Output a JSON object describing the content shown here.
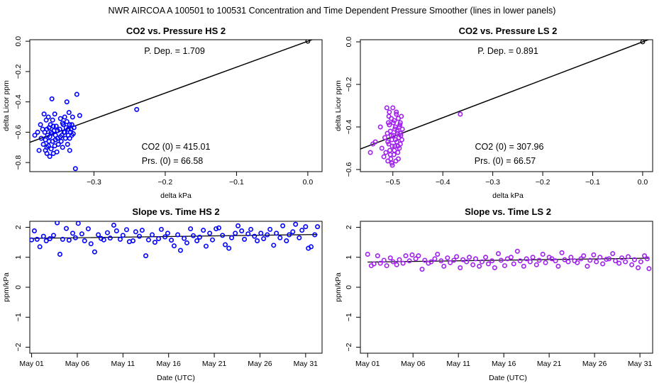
{
  "page_title": "NWR   AIRCOA A   100501 to 100531   Concentration and Time Dependent Pressure Smoother (lines in lower panels)",
  "colors": {
    "hs": "#0000ff",
    "ls": "#a020f0",
    "line": "#000000"
  },
  "chart_data": [
    {
      "id": "hs-pressure",
      "type": "scatter",
      "title": "CO2 vs. Pressure HS 2",
      "xlabel": "delta kPa",
      "ylabel": "delta Licor ppm",
      "xlim": [
        -0.39,
        0.02
      ],
      "ylim": [
        -0.86,
        0.01
      ],
      "xticks": [
        -0.3,
        -0.2,
        -0.1,
        0.0
      ],
      "xtick_labels": [
        "−0.3",
        "−0.2",
        "−0.1",
        "0.0"
      ],
      "yticks": [
        0.0,
        -0.2,
        -0.4,
        -0.6,
        -0.8
      ],
      "ytick_labels": [
        "0.0",
        "−0.2",
        "−0.4",
        "−0.6",
        "−0.8"
      ],
      "annotations": {
        "pdep": "P. Dep. =  1.709",
        "co2_0": "CO2 (0) =  415.01",
        "prs_0": "Prs. (0) =  66.58"
      },
      "fit_line": {
        "slope": 1.709,
        "intercept": 0.0
      },
      "origin_point": [
        0.0,
        0.0
      ],
      "series": [
        {
          "x": [
            -0.383,
            -0.379,
            -0.377,
            -0.375,
            -0.374,
            -0.372,
            -0.371,
            -0.37,
            -0.369,
            -0.368,
            -0.368,
            -0.367,
            -0.366,
            -0.366,
            -0.365,
            -0.364,
            -0.364,
            -0.363,
            -0.362,
            -0.362,
            -0.361,
            -0.36,
            -0.36,
            -0.359,
            -0.358,
            -0.358,
            -0.357,
            -0.356,
            -0.355,
            -0.355,
            -0.354,
            -0.353,
            -0.352,
            -0.351,
            -0.35,
            -0.348,
            -0.347,
            -0.346,
            -0.345,
            -0.344,
            -0.343,
            -0.342,
            -0.341,
            -0.34,
            -0.339,
            -0.338,
            -0.337,
            -0.336,
            -0.335,
            -0.334,
            -0.334,
            -0.333,
            -0.332,
            -0.331,
            -0.33,
            -0.328,
            -0.326,
            -0.324,
            -0.32,
            -0.366,
            -0.363,
            -0.359,
            -0.357,
            -0.354,
            -0.351,
            -0.347,
            -0.344,
            -0.341,
            -0.338,
            -0.336,
            -0.334,
            -0.331,
            -0.329,
            -0.24
          ],
          "y": [
            -0.62,
            -0.6,
            -0.72,
            -0.55,
            -0.64,
            -0.58,
            -0.68,
            -0.48,
            -0.6,
            -0.72,
            -0.65,
            -0.52,
            -0.58,
            -0.74,
            -0.62,
            -0.5,
            -0.69,
            -0.57,
            -0.63,
            -0.76,
            -0.55,
            -0.6,
            -0.71,
            -0.38,
            -0.66,
            -0.52,
            -0.74,
            -0.59,
            -0.48,
            -0.69,
            -0.62,
            -0.56,
            -0.73,
            -0.64,
            -0.68,
            -0.58,
            -0.51,
            -0.66,
            -0.62,
            -0.7,
            -0.55,
            -0.6,
            -0.5,
            -0.64,
            -0.57,
            -0.53,
            -0.68,
            -0.62,
            -0.47,
            -0.55,
            -0.72,
            -0.6,
            -0.58,
            -0.62,
            -0.5,
            -0.57,
            -0.84,
            -0.35,
            -0.49,
            -0.7,
            -0.66,
            -0.61,
            -0.56,
            -0.65,
            -0.59,
            -0.63,
            -0.54,
            -0.6,
            -0.4,
            -0.58,
            -0.64,
            -0.55,
            -0.61,
            -0.45
          ]
        }
      ]
    },
    {
      "id": "ls-pressure",
      "type": "scatter",
      "title": "CO2 vs. Pressure LS 2",
      "xlabel": "delta kPa",
      "ylabel": "delta Licor ppm",
      "xlim": [
        -0.565,
        0.02
      ],
      "ylim": [
        -0.61,
        0.01
      ],
      "xticks": [
        -0.5,
        -0.4,
        -0.3,
        -0.2,
        -0.1,
        0.0
      ],
      "xtick_labels": [
        "−0.5",
        "−0.4",
        "−0.3",
        "−0.2",
        "−0.1",
        "0.0"
      ],
      "yticks": [
        0.0,
        -0.2,
        -0.4,
        -0.6
      ],
      "ytick_labels": [
        "0.0",
        "−0.2",
        "−0.4",
        "−0.6"
      ],
      "annotations": {
        "pdep": "P. Dep. =  0.891",
        "co2_0": "CO2 (0) =  307.96",
        "prs_0": "Prs. (0) =  66.57"
      },
      "fit_line": {
        "slope": 0.891,
        "intercept": 0.0
      },
      "origin_point": [
        0.0,
        0.0
      ],
      "series": [
        {
          "x": [
            -0.545,
            -0.54,
            -0.535,
            -0.525,
            -0.522,
            -0.518,
            -0.516,
            -0.514,
            -0.512,
            -0.511,
            -0.51,
            -0.509,
            -0.508,
            -0.507,
            -0.506,
            -0.505,
            -0.504,
            -0.503,
            -0.502,
            -0.501,
            -0.5,
            -0.499,
            -0.498,
            -0.497,
            -0.496,
            -0.495,
            -0.494,
            -0.493,
            -0.492,
            -0.491,
            -0.49,
            -0.489,
            -0.488,
            -0.487,
            -0.486,
            -0.485,
            -0.484,
            -0.483,
            -0.482,
            -0.481,
            -0.51,
            -0.507,
            -0.505,
            -0.503,
            -0.501,
            -0.499,
            -0.497,
            -0.495,
            -0.493,
            -0.491,
            -0.489,
            -0.487,
            -0.485,
            -0.508,
            -0.502,
            -0.496,
            -0.49,
            -0.484,
            -0.365
          ],
          "y": [
            -0.52,
            -0.48,
            -0.47,
            -0.4,
            -0.5,
            -0.54,
            -0.45,
            -0.52,
            -0.31,
            -0.43,
            -0.56,
            -0.38,
            -0.48,
            -0.33,
            -0.51,
            -0.42,
            -0.55,
            -0.36,
            -0.46,
            -0.58,
            -0.31,
            -0.44,
            -0.53,
            -0.37,
            -0.49,
            -0.4,
            -0.56,
            -0.34,
            -0.47,
            -0.42,
            -0.52,
            -0.36,
            -0.45,
            -0.5,
            -0.39,
            -0.48,
            -0.43,
            -0.35,
            -0.46,
            -0.41,
            -0.47,
            -0.39,
            -0.53,
            -0.44,
            -0.49,
            -0.38,
            -0.51,
            -0.46,
            -0.33,
            -0.43,
            -0.55,
            -0.4,
            -0.38,
            -0.35,
            -0.57,
            -0.41,
            -0.49,
            -0.44,
            -0.34
          ]
        }
      ]
    },
    {
      "id": "hs-time",
      "type": "scatter",
      "title": "Slope vs. Time HS 2",
      "xlabel": "Date (UTC)",
      "ylabel": "ppm/kPa",
      "xlim": [
        -0.2,
        31.8
      ],
      "ylim": [
        -2.2,
        2.2
      ],
      "xticks": [
        0,
        5,
        10,
        15,
        20,
        25,
        30
      ],
      "xtick_labels": [
        "May 01",
        "May 06",
        "May 11",
        "May 16",
        "May 21",
        "May 26",
        "May 31"
      ],
      "yticks": [
        2,
        1,
        0,
        -1,
        -2
      ],
      "ytick_labels": [
        "2",
        "1",
        "0",
        "−1",
        "−2"
      ],
      "smoother": {
        "x": [
          0.0,
          31.3
        ],
        "y": [
          1.63,
          1.76
        ]
      },
      "series": [
        {
          "x": [
            0.0,
            0.3,
            0.6,
            0.9,
            1.3,
            1.6,
            2.0,
            2.4,
            2.8,
            3.1,
            3.4,
            3.8,
            4.1,
            4.5,
            4.8,
            5.1,
            5.5,
            5.8,
            6.2,
            6.5,
            6.9,
            7.3,
            7.6,
            7.9,
            8.3,
            8.6,
            9.0,
            9.3,
            9.7,
            10.0,
            10.4,
            10.7,
            11.1,
            11.4,
            11.8,
            12.1,
            12.5,
            12.8,
            13.2,
            13.5,
            13.9,
            14.2,
            14.6,
            14.9,
            15.3,
            15.6,
            16.0,
            16.3,
            16.7,
            17.0,
            17.4,
            17.7,
            18.1,
            18.4,
            18.8,
            19.1,
            19.5,
            19.8,
            20.2,
            20.5,
            20.9,
            21.2,
            21.6,
            21.9,
            22.3,
            22.6,
            23.0,
            23.3,
            23.7,
            24.0,
            24.4,
            24.7,
            25.1,
            25.4,
            25.8,
            26.1,
            26.5,
            26.8,
            27.2,
            27.5,
            27.9,
            28.2,
            28.6,
            28.9,
            29.3,
            29.6,
            30.0,
            30.3,
            30.6,
            31.0,
            31.3
          ],
          "y": [
            1.58,
            1.88,
            1.6,
            1.35,
            1.7,
            1.55,
            1.62,
            1.73,
            2.15,
            1.1,
            1.6,
            1.96,
            1.57,
            1.8,
            1.65,
            2.13,
            1.78,
            1.55,
            1.95,
            1.45,
            1.18,
            1.75,
            1.63,
            1.58,
            1.82,
            1.64,
            2.07,
            1.88,
            1.6,
            1.73,
            1.92,
            1.52,
            1.55,
            1.85,
            1.7,
            1.9,
            1.05,
            1.58,
            1.75,
            1.5,
            1.62,
            1.93,
            1.68,
            1.8,
            1.57,
            1.38,
            1.75,
            1.23,
            1.63,
            1.48,
            1.95,
            1.72,
            1.55,
            1.67,
            1.9,
            1.37,
            1.8,
            1.58,
            1.95,
            1.98,
            1.73,
            1.42,
            1.3,
            1.65,
            1.8,
            2.05,
            1.88,
            1.6,
            1.78,
            1.93,
            1.7,
            1.55,
            1.8,
            1.62,
            1.75,
            1.93,
            1.4,
            1.8,
            1.65,
            2.05,
            1.55,
            1.75,
            1.85,
            2.1,
            1.65,
            1.9,
            2.02,
            1.3,
            1.35,
            1.75,
            2.02
          ]
        }
      ]
    },
    {
      "id": "ls-time",
      "type": "scatter",
      "title": "Slope vs. Time LS 2",
      "xlabel": "Date (UTC)",
      "ylabel": "ppm/kPa",
      "xlim": [
        -0.8,
        31.4
      ],
      "ylim": [
        -2.2,
        2.2
      ],
      "xticks": [
        0,
        5,
        10,
        15,
        20,
        25,
        30
      ],
      "xtick_labels": [
        "May 01",
        "May 06",
        "May 11",
        "May 16",
        "May 21",
        "May 26",
        "May 31"
      ],
      "yticks": [
        2,
        1,
        0,
        -1,
        -2
      ],
      "ytick_labels": [
        "2",
        "1",
        "0",
        "−1",
        "−2"
      ],
      "smoother": {
        "x": [
          0.0,
          31.0
        ],
        "y": [
          0.84,
          0.97
        ]
      },
      "series": [
        {
          "x": [
            0.0,
            0.4,
            0.7,
            1.1,
            1.4,
            1.8,
            2.1,
            2.5,
            2.8,
            3.2,
            3.5,
            3.9,
            4.2,
            4.6,
            4.9,
            5.3,
            5.6,
            6.0,
            6.3,
            6.7,
            7.0,
            7.4,
            7.7,
            8.1,
            8.4,
            8.8,
            9.1,
            9.5,
            9.8,
            10.2,
            10.5,
            10.9,
            11.2,
            11.6,
            11.9,
            12.3,
            12.6,
            13.0,
            13.3,
            13.7,
            14.0,
            14.4,
            14.7,
            15.1,
            15.4,
            15.8,
            16.1,
            16.5,
            16.8,
            17.2,
            17.5,
            17.9,
            18.2,
            18.6,
            18.9,
            19.3,
            19.6,
            20.0,
            20.3,
            20.7,
            21.0,
            21.4,
            21.7,
            22.1,
            22.4,
            22.8,
            23.1,
            23.5,
            23.8,
            24.2,
            24.5,
            24.9,
            25.2,
            25.6,
            25.9,
            26.3,
            26.6,
            27.0,
            27.3,
            27.7,
            28.0,
            28.4,
            28.7,
            29.1,
            29.4,
            29.8,
            30.1,
            30.5,
            30.8,
            31.0
          ],
          "y": [
            1.1,
            0.72,
            0.78,
            1.05,
            0.8,
            0.9,
            0.72,
            0.98,
            0.85,
            0.75,
            0.92,
            0.8,
            1.05,
            0.88,
            1.08,
            0.95,
            1.05,
            0.6,
            0.9,
            0.8,
            0.85,
            0.95,
            1.1,
            0.88,
            0.7,
            0.98,
            0.82,
            0.9,
            1.02,
            0.65,
            0.92,
            0.85,
            1.0,
            0.75,
            0.95,
            0.7,
            0.85,
            1.0,
            0.78,
            0.88,
            0.65,
            1.12,
            0.9,
            0.72,
            0.95,
            1.0,
            0.78,
            1.2,
            0.88,
            0.7,
            0.95,
            0.85,
            1.0,
            0.75,
            0.9,
            1.1,
            0.82,
            1.0,
            0.95,
            0.88,
            0.7,
            1.15,
            0.92,
            0.85,
            1.0,
            0.88,
            0.82,
            0.95,
            1.05,
            0.7,
            0.9,
            1.08,
            0.85,
            1.0,
            0.78,
            0.93,
            0.95,
            1.12,
            0.88,
            0.8,
            0.98,
            0.85,
            1.02,
            0.75,
            0.92,
            0.65,
            0.85,
            1.05,
            0.95,
            0.62
          ]
        }
      ]
    }
  ]
}
